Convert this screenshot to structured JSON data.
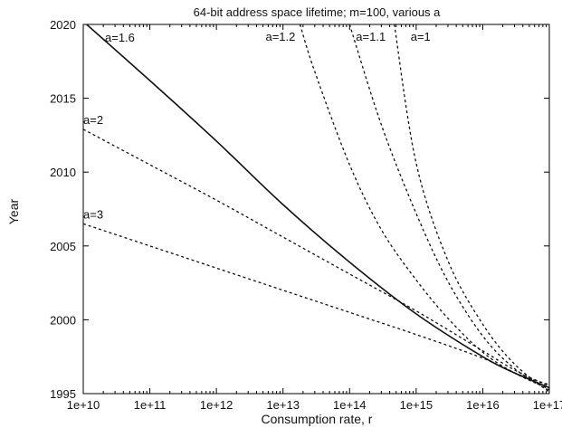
{
  "chart_data": {
    "type": "line",
    "title": "64-bit address space lifetime; m=100, various a",
    "xlabel": "Consumption rate, r",
    "ylabel": "Year",
    "xscale": "log",
    "xlim": [
      10000000000.0,
      1e+17
    ],
    "ylim": [
      1995,
      2020
    ],
    "xticks": [
      10000000000.0,
      100000000000.0,
      1000000000000.0,
      10000000000000.0,
      100000000000000.0,
      1000000000000000.0,
      1e+16,
      1e+17
    ],
    "xtick_labels": [
      "1e+10",
      "1e+11",
      "1e+12",
      "1e+13",
      "1e+14",
      "1e+15",
      "1e+16",
      "1e+17"
    ],
    "yticks": [
      1995,
      2000,
      2005,
      2010,
      2015,
      2020
    ],
    "ytick_labels": [
      "1995",
      "2000",
      "2005",
      "2010",
      "2015",
      "2020"
    ],
    "grid": false,
    "legend": "none",
    "series": [
      {
        "name": "a=1",
        "style": "dashed",
        "x": [
          470000000000000.0,
          1000000000000000.0,
          3000000000000000.0,
          1e+16,
          3e+16,
          1e+17
        ],
        "y": [
          2020,
          2010.6,
          2004.0,
          1999.7,
          1997.0,
          1995.1
        ]
      },
      {
        "name": "a=1.1",
        "style": "dashed",
        "x": [
          100000000000000.0,
          300000000000000.0,
          1000000000000000.0,
          3000000000000000.0,
          1e+16,
          3e+16,
          1e+17
        ],
        "y": [
          2020,
          2013.2,
          2007.2,
          2002.6,
          1998.9,
          1996.7,
          1995.2
        ]
      },
      {
        "name": "a=1.2",
        "style": "dashed",
        "x": [
          18000000000000.0,
          30000000000000.0,
          100000000000000.0,
          300000000000000.0,
          1000000000000000.0,
          3000000000000000.0,
          1e+16,
          3e+16,
          1e+17
        ],
        "y": [
          2020,
          2016.8,
          2010.5,
          2006.1,
          2002.7,
          2000.1,
          1997.8,
          1996.4,
          1995.3
        ]
      },
      {
        "name": "a=1.6",
        "style": "solid",
        "x": [
          10000000000.0,
          100000000000.0,
          1000000000000.0,
          10000000000000.0,
          100000000000000.0,
          1000000000000000.0,
          1e+16,
          3e+16,
          1e+17
        ],
        "y": [
          2020.2,
          2016.2,
          2012.1,
          2007.8,
          2003.9,
          2000.4,
          1997.5,
          1996.4,
          1995.4
        ]
      },
      {
        "name": "a=2",
        "style": "dashed",
        "x": [
          10000000000.0,
          100000000000.0,
          1000000000000.0,
          10000000000000.0,
          100000000000000.0,
          1000000000000000.0,
          1e+16,
          3e+16,
          1e+17
        ],
        "y": [
          2012.9,
          2010.5,
          2008.1,
          2005.6,
          2003.1,
          2000.6,
          1997.9,
          1996.6,
          1995.5
        ]
      },
      {
        "name": "a=3",
        "style": "dashed",
        "x": [
          10000000000.0,
          100000000000.0,
          1000000000000.0,
          10000000000000.0,
          100000000000000.0,
          1000000000000000.0,
          1e+16,
          3e+16,
          1e+17
        ],
        "y": [
          2006.5,
          2005.0,
          2003.5,
          2002.0,
          2000.5,
          1999.0,
          1997.4,
          1996.4,
          1995.6
        ]
      }
    ]
  }
}
